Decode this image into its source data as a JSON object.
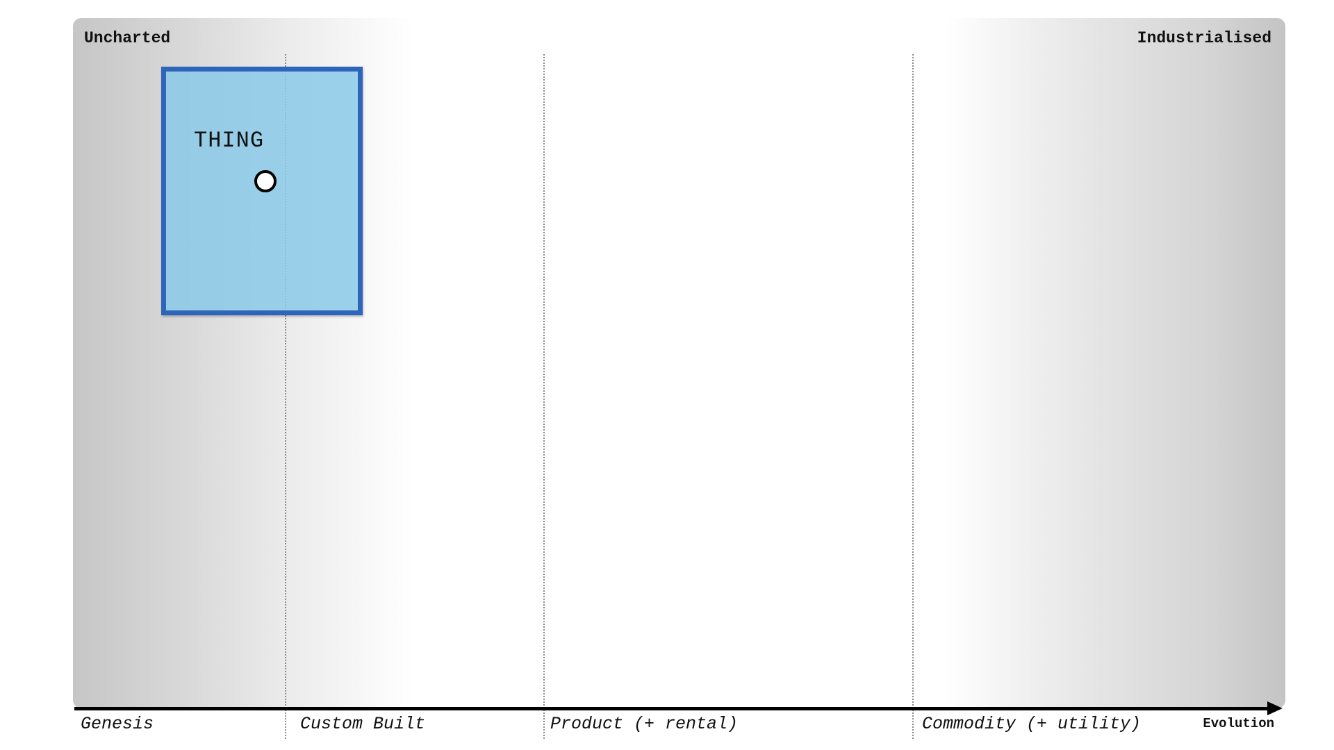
{
  "map": {
    "top_left_label": "Uncharted",
    "top_right_label": "Industrialised"
  },
  "axis": {
    "label": "Evolution",
    "stages": [
      "Genesis",
      "Custom Built",
      "Product (+ rental)",
      "Commodity (+ utility)"
    ]
  },
  "components": [
    {
      "name": "THING",
      "fill_color": "#88c8e8",
      "border_color": "#2f64bb"
    }
  ],
  "colors": {
    "axis": "#000000",
    "stage_divider": "#8a8a8a"
  }
}
